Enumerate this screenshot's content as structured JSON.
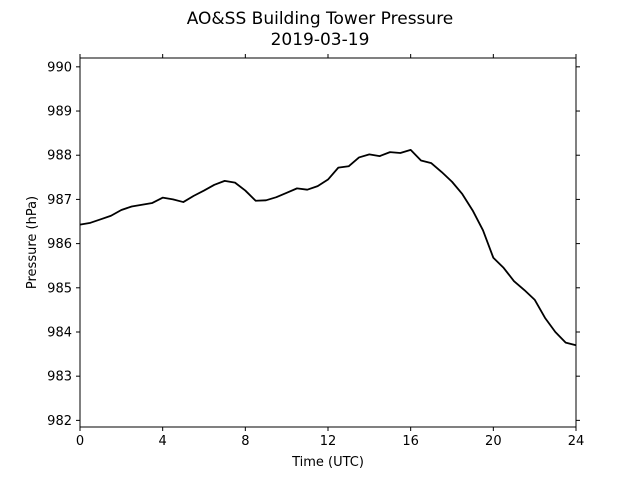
{
  "chart_data": {
    "type": "line",
    "title": "AO&SS Building Tower Pressure",
    "subtitle": "2019-03-19",
    "xlabel": "Time (UTC)",
    "ylabel": "Pressure (hPa)",
    "xlim": [
      0,
      24
    ],
    "ylim": [
      981.85,
      990.2
    ],
    "x_ticks": [
      0,
      4,
      8,
      12,
      16,
      20,
      24
    ],
    "y_ticks": [
      982,
      983,
      984,
      985,
      986,
      987,
      988,
      989,
      990
    ],
    "grid": false,
    "legend": "none",
    "line_color": "#000000",
    "series": [
      {
        "x": [
          0,
          0.5,
          1.0,
          1.5,
          2.0,
          2.5,
          3.0,
          3.5,
          4.0,
          4.5,
          5.0,
          5.5,
          6.0,
          6.5,
          7.0,
          7.5,
          8.0,
          8.5,
          9.0,
          9.5,
          10.0,
          10.5,
          11.0,
          11.5,
          12.0,
          12.5,
          13.0,
          13.5,
          14.0,
          14.5,
          15.0,
          15.5,
          16.0,
          16.5,
          17.0,
          17.5,
          18.0,
          18.5,
          19.0,
          19.5,
          20.0,
          20.5,
          21.0,
          21.5,
          22.0,
          22.5,
          23.0,
          23.5,
          24.0
        ],
        "values": [
          986.43,
          986.47,
          986.55,
          986.63,
          986.76,
          986.84,
          986.88,
          986.92,
          987.04,
          987.0,
          986.94,
          987.08,
          987.2,
          987.33,
          987.42,
          987.38,
          987.2,
          986.97,
          986.98,
          987.05,
          987.15,
          987.25,
          987.22,
          987.3,
          987.45,
          987.72,
          987.75,
          987.95,
          988.02,
          987.98,
          988.07,
          988.05,
          988.12,
          987.88,
          987.82,
          987.62,
          987.4,
          987.12,
          986.75,
          986.3,
          985.68,
          985.45,
          985.15,
          984.95,
          984.73,
          984.32,
          984.0,
          983.76,
          983.7
        ]
      }
    ]
  }
}
